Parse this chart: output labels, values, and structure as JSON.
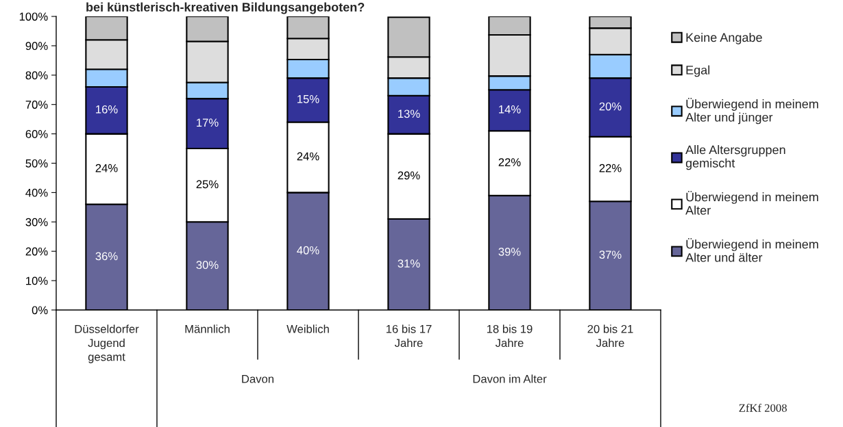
{
  "chart_data": {
    "type": "bar",
    "stacked": true,
    "title": "bei künstlerisch-kreativen Bildungsangeboten?",
    "categories": [
      "Düsseldorfer Jugend gesamt",
      "Männlich",
      "Weiblich",
      "16 bis 17 Jahre",
      "18 bis 19 Jahre",
      "20 bis 21 Jahre"
    ],
    "series": [
      {
        "name": "Überwiegend in meinem Alter und älter",
        "color": "#666699",
        "values": [
          36,
          30,
          40,
          31,
          39,
          37
        ],
        "value_labels": [
          "36%",
          "30%",
          "40%",
          "31%",
          "39%",
          "37%"
        ]
      },
      {
        "name": "Überwiegend in meinem Alter",
        "color": "#ffffff",
        "values": [
          24,
          25,
          24,
          29,
          22,
          22
        ],
        "value_labels": [
          "24%",
          "25%",
          "24%",
          "29%",
          "22%",
          "22%"
        ]
      },
      {
        "name": "Alle Altersgruppen gemischt",
        "color": "#333399",
        "values": [
          16,
          17,
          15,
          13,
          14,
          20
        ],
        "value_labels": [
          "16%",
          "17%",
          "15%",
          "13%",
          "14%",
          "20%"
        ]
      },
      {
        "name": "Überwiegend in meinem Alter und jünger",
        "color": "#99ccff",
        "values": [
          6,
          5.5,
          6.3,
          6,
          4.7,
          8
        ]
      },
      {
        "name": "Egal",
        "color": "#dddddd",
        "values": [
          10,
          14,
          7.2,
          7.2,
          14,
          9
        ]
      },
      {
        "name": "Keine Angabe",
        "color": "#c0c0c0",
        "values": [
          8,
          8.5,
          7.5,
          13.5,
          6.3,
          4
        ]
      }
    ],
    "ylim": [
      0,
      100
    ],
    "yticks": [
      {
        "value": 0,
        "label": "0%"
      },
      {
        "value": 10,
        "label": "10%"
      },
      {
        "value": 20,
        "label": "20%"
      },
      {
        "value": 30,
        "label": "30%"
      },
      {
        "value": 40,
        "label": "40%"
      },
      {
        "value": 50,
        "label": "50%"
      },
      {
        "value": 60,
        "label": "60%"
      },
      {
        "value": 70,
        "label": "70%"
      },
      {
        "value": 80,
        "label": "80%"
      },
      {
        "value": 90,
        "label": "90%"
      },
      {
        "value": 100,
        "label": "100%"
      }
    ],
    "grid": false,
    "legend": "right",
    "annotations": [
      "Davon",
      "Davon im Alter",
      "ZfKf 2008"
    ]
  }
}
